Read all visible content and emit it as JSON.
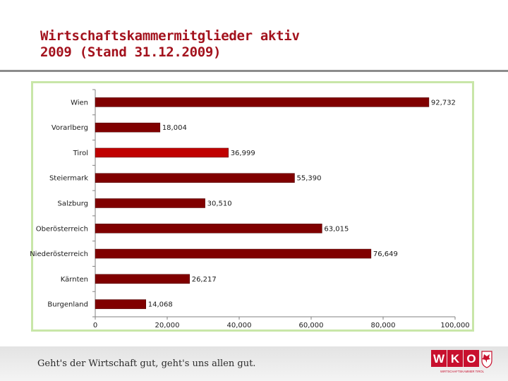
{
  "header": {
    "title_line1": "Wirtschaftskammermitglieder aktiv",
    "title_line2": "2009 (Stand 31.12.2009)"
  },
  "chart_data": {
    "type": "bar",
    "orientation": "horizontal",
    "categories": [
      "Wien",
      "Vorarlberg",
      "Tirol",
      "Steiermark",
      "Salzburg",
      "Oberösterreich",
      "Niederösterreich",
      "Kärnten",
      "Burgenland"
    ],
    "values": [
      92732,
      18004,
      36999,
      55390,
      30510,
      63015,
      76649,
      26217,
      14068
    ],
    "value_labels": [
      "92,732",
      "18,004",
      "36,999",
      "55,390",
      "30,510",
      "63,015",
      "76,649",
      "26,217",
      "14,068"
    ],
    "bar_color": "#800000",
    "highlight_category": "Tirol",
    "highlight_color": "#c00000",
    "xlim": [
      0,
      100000
    ],
    "x_ticks": [
      0,
      20000,
      40000,
      60000,
      80000,
      100000
    ],
    "x_tick_labels": [
      "0",
      "20,000",
      "40,000",
      "60,000",
      "80,000",
      "100,000"
    ],
    "grid": false,
    "legend": "none"
  },
  "footer": {
    "slogan": "Geht's der Wirtschaft gut, geht's uns allen gut.",
    "logo_text": "WKO",
    "logo_subtext": "WIRTSCHAFTSKAMMER TIROL"
  },
  "colors": {
    "title": "#a3121d",
    "frame": "#c8e6a8",
    "logo_red": "#c8102e"
  }
}
